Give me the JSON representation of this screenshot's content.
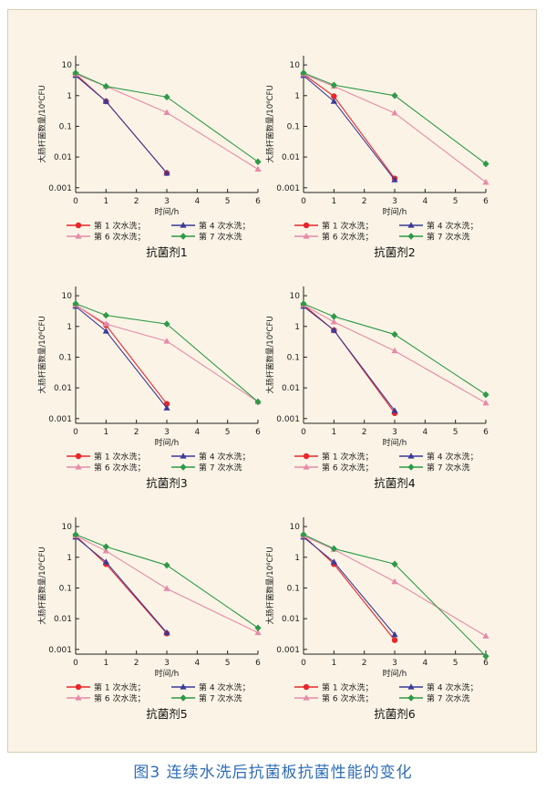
{
  "caption": "图3 连续水洗后抗菌板抗菌性能的变化",
  "series_styles": [
    {
      "name": "第 1 次水洗；",
      "color": "#e8262b",
      "marker": "circle"
    },
    {
      "name": "第 4 次水洗；",
      "color": "#3b3a98",
      "marker": "triangle"
    },
    {
      "name": "第 6 次水洗；",
      "color": "#e58aa8",
      "marker": "triangle"
    },
    {
      "name": "第 7 次水洗",
      "color": "#2e9a48",
      "marker": "diamond"
    }
  ],
  "chart_data": [
    {
      "type": "line",
      "title": "抗菌剂1",
      "xlabel": "时间/h",
      "ylabel": "大肠杆菌数量/10⁶CFU",
      "xlim": [
        0,
        6
      ],
      "ylim": [
        0.0007,
        20
      ],
      "yscale": "log",
      "xticks": [
        "0",
        "1",
        "2",
        "3",
        "4",
        "5",
        "6"
      ],
      "yticks": [
        "0.001",
        "0.01",
        "0.1",
        "1",
        "10"
      ],
      "grid": false,
      "legend": "bottom",
      "series": [
        {
          "name": "第 1 次水洗；",
          "x": [
            0,
            1,
            3
          ],
          "y": [
            5,
            0.65,
            0.003
          ]
        },
        {
          "name": "第 4 次水洗；",
          "x": [
            0,
            1,
            3
          ],
          "y": [
            4.5,
            0.65,
            0.003
          ]
        },
        {
          "name": "第 6 次水洗；",
          "x": [
            0,
            1,
            3,
            6
          ],
          "y": [
            5,
            2,
            0.28,
            0.004
          ]
        },
        {
          "name": "第 7 次水洗",
          "x": [
            0,
            1,
            3,
            6
          ],
          "y": [
            5.5,
            2,
            0.9,
            0.007
          ]
        }
      ]
    },
    {
      "type": "line",
      "title": "抗菌剂2",
      "xlabel": "时间/h",
      "ylabel": "大肠杆菌数量/10⁶CFU",
      "xlim": [
        0,
        6
      ],
      "ylim": [
        0.0007,
        20
      ],
      "yscale": "log",
      "xticks": [
        "0",
        "1",
        "2",
        "3",
        "4",
        "5",
        "6"
      ],
      "yticks": [
        "0.001",
        "0.01",
        "0.1",
        "1",
        "10"
      ],
      "grid": false,
      "legend": "bottom",
      "series": [
        {
          "name": "第 1 次水洗；",
          "x": [
            0,
            1,
            3
          ],
          "y": [
            5,
            0.95,
            0.002
          ]
        },
        {
          "name": "第 4 次水洗；",
          "x": [
            0,
            1,
            3
          ],
          "y": [
            4.5,
            0.65,
            0.0018
          ]
        },
        {
          "name": "第 6 次水洗；",
          "x": [
            0,
            1,
            3,
            6
          ],
          "y": [
            5,
            2,
            0.27,
            0.0015
          ]
        },
        {
          "name": "第 7 次水洗",
          "x": [
            0,
            1,
            3,
            6
          ],
          "y": [
            5.5,
            2.2,
            1.0,
            0.006
          ]
        }
      ]
    },
    {
      "type": "line",
      "title": "抗菌剂3",
      "xlabel": "时间/h",
      "ylabel": "大肠杆菌数量/10⁶CFU",
      "xlim": [
        0,
        6
      ],
      "ylim": [
        0.0007,
        20
      ],
      "yscale": "log",
      "xticks": [
        "0",
        "1",
        "2",
        "3",
        "4",
        "5",
        "6"
      ],
      "yticks": [
        "0.001",
        "0.01",
        "0.1",
        "1",
        "10"
      ],
      "grid": false,
      "legend": "bottom",
      "series": [
        {
          "name": "第 1 次水洗；",
          "x": [
            0,
            1,
            3
          ],
          "y": [
            5,
            1.1,
            0.003
          ]
        },
        {
          "name": "第 4 次水洗；",
          "x": [
            0,
            1,
            3
          ],
          "y": [
            4.5,
            0.7,
            0.0022
          ]
        },
        {
          "name": "第 6 次水洗；",
          "x": [
            0,
            1,
            3,
            6
          ],
          "y": [
            5,
            1.2,
            0.33,
            0.0035
          ]
        },
        {
          "name": "第 7 次水洗",
          "x": [
            0,
            1,
            3,
            6
          ],
          "y": [
            5.5,
            2.3,
            1.2,
            0.0035
          ]
        }
      ]
    },
    {
      "type": "line",
      "title": "抗菌剂4",
      "xlabel": "时间/h",
      "ylabel": "大肠杆菌数量/10⁶CFU",
      "xlim": [
        0,
        6
      ],
      "ylim": [
        0.0007,
        20
      ],
      "yscale": "log",
      "xticks": [
        "0",
        "1",
        "2",
        "3",
        "4",
        "5",
        "6"
      ],
      "yticks": [
        "0.001",
        "0.01",
        "0.1",
        "1",
        "10"
      ],
      "grid": false,
      "legend": "bottom",
      "series": [
        {
          "name": "第 1 次水洗；",
          "x": [
            0,
            1,
            3
          ],
          "y": [
            5,
            0.75,
            0.0015
          ]
        },
        {
          "name": "第 4 次水洗；",
          "x": [
            0,
            1,
            3
          ],
          "y": [
            4.5,
            0.75,
            0.0018
          ]
        },
        {
          "name": "第 6 次水洗；",
          "x": [
            0,
            1,
            3,
            6
          ],
          "y": [
            5,
            1.4,
            0.16,
            0.0032
          ]
        },
        {
          "name": "第 7 次水洗",
          "x": [
            0,
            1,
            3,
            6
          ],
          "y": [
            5.5,
            2.1,
            0.55,
            0.006
          ]
        }
      ]
    },
    {
      "type": "line",
      "title": "抗菌剂5",
      "xlabel": "时间/h",
      "ylabel": "大肠杆菌数量/10⁶CFU",
      "xlim": [
        0,
        6
      ],
      "ylim": [
        0.0007,
        20
      ],
      "yscale": "log",
      "xticks": [
        "0",
        "1",
        "2",
        "3",
        "4",
        "5",
        "6"
      ],
      "yticks": [
        "0.001",
        "0.01",
        "0.1",
        "1",
        "10"
      ],
      "grid": false,
      "legend": "bottom",
      "series": [
        {
          "name": "第 1 次水洗；",
          "x": [
            0,
            1,
            3
          ],
          "y": [
            5,
            0.6,
            0.0033
          ]
        },
        {
          "name": "第 4 次水洗；",
          "x": [
            0,
            1,
            3
          ],
          "y": [
            4.5,
            0.7,
            0.0035
          ]
        },
        {
          "name": "第 6 次水洗；",
          "x": [
            0,
            1,
            3,
            6
          ],
          "y": [
            5,
            1.6,
            0.095,
            0.0035
          ]
        },
        {
          "name": "第 7 次水洗",
          "x": [
            0,
            1,
            3,
            6
          ],
          "y": [
            5.5,
            2.2,
            0.55,
            0.005
          ]
        }
      ]
    },
    {
      "type": "line",
      "title": "抗菌剂6",
      "xlabel": "时间/h",
      "ylabel": "大肠杆菌数量/10⁶CFU",
      "xlim": [
        0,
        6
      ],
      "ylim": [
        0.0007,
        20
      ],
      "yscale": "log",
      "xticks": [
        "0",
        "1",
        "2",
        "3",
        "4",
        "5",
        "6"
      ],
      "yticks": [
        "0.001",
        "0.01",
        "0.1",
        "1",
        "10"
      ],
      "grid": false,
      "legend": "bottom",
      "series": [
        {
          "name": "第 1 次水洗；",
          "x": [
            0,
            1,
            3
          ],
          "y": [
            5,
            0.6,
            0.002
          ]
        },
        {
          "name": "第 4 次水洗；",
          "x": [
            0,
            1,
            3
          ],
          "y": [
            4.5,
            0.7,
            0.003
          ]
        },
        {
          "name": "第 6 次水洗；",
          "x": [
            0,
            1,
            3,
            6
          ],
          "y": [
            5,
            1.8,
            0.16,
            0.0027
          ]
        },
        {
          "name": "第 7 次水洗",
          "x": [
            0,
            1,
            3,
            6
          ],
          "y": [
            5.5,
            1.9,
            0.6,
            0.0006
          ]
        }
      ]
    }
  ]
}
